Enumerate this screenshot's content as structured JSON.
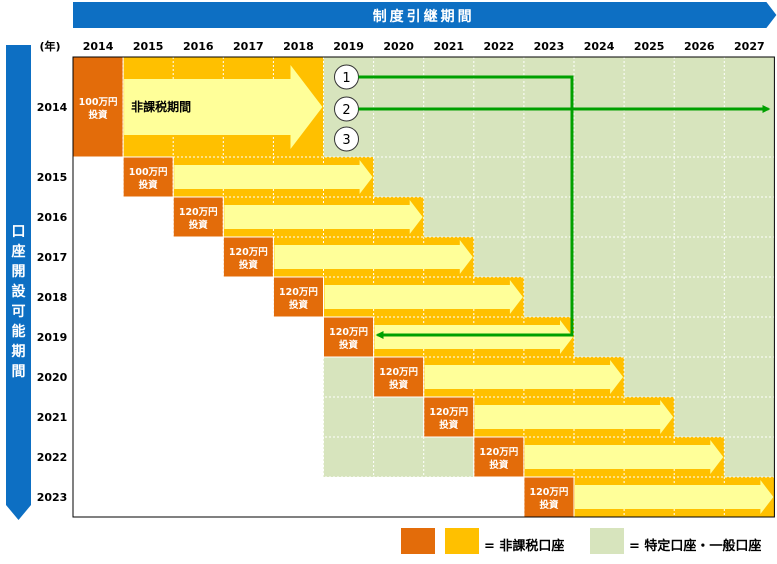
{
  "header": {
    "title": "制度引継期間"
  },
  "side_header": {
    "chars": [
      "口",
      "座",
      "開",
      "設",
      "可",
      "能",
      "期",
      "間"
    ]
  },
  "year_unit_label": "(年)",
  "columns": [
    "2014",
    "2015",
    "2016",
    "2017",
    "2018",
    "2019",
    "2020",
    "2021",
    "2022",
    "2023",
    "2024",
    "2025",
    "2026",
    "2027"
  ],
  "rows": [
    {
      "year": "2014",
      "invest_label": "100万円\n投資",
      "arrow_label": "非課税期間",
      "end_year_index": 4
    },
    {
      "year": "2015",
      "invest_label": "100万円\n投資",
      "end_year_index": 5
    },
    {
      "year": "2016",
      "invest_label": "120万円\n投資",
      "end_year_index": 6
    },
    {
      "year": "2017",
      "invest_label": "120万円\n投資",
      "end_year_index": 7
    },
    {
      "year": "2018",
      "invest_label": "120万円\n投資",
      "end_year_index": 8
    },
    {
      "year": "2019",
      "invest_label": "120万円\n投資",
      "end_year_index": 9
    },
    {
      "year": "2020",
      "invest_label": "120万円\n投資",
      "end_year_index": 10
    },
    {
      "year": "2021",
      "invest_label": "120万円\n投資",
      "end_year_index": 11
    },
    {
      "year": "2022",
      "invest_label": "120万円\n投資",
      "end_year_index": 12
    },
    {
      "year": "2023",
      "invest_label": "120万円\n投資",
      "end_year_index": 13
    }
  ],
  "options": [
    {
      "number": "1",
      "target": "rollover-to-2019"
    },
    {
      "number": "2",
      "target": "specific-or-general-account"
    },
    {
      "number": "3",
      "target": "none"
    }
  ],
  "legend": {
    "tax_free_label": "= 非課税口座",
    "taxable_label": "= 特定口座・一般口座"
  },
  "colors": {
    "header_blue": "#0d6fc3",
    "invest_orange": "#e36c0a",
    "taxfree_yellow": "#ffc000",
    "arrow_light_yellow": "#ffff99",
    "taxable_green": "#d7e4bd",
    "flow_green": "#00a000",
    "grid_line": "#ffffff",
    "border": "#000000"
  }
}
